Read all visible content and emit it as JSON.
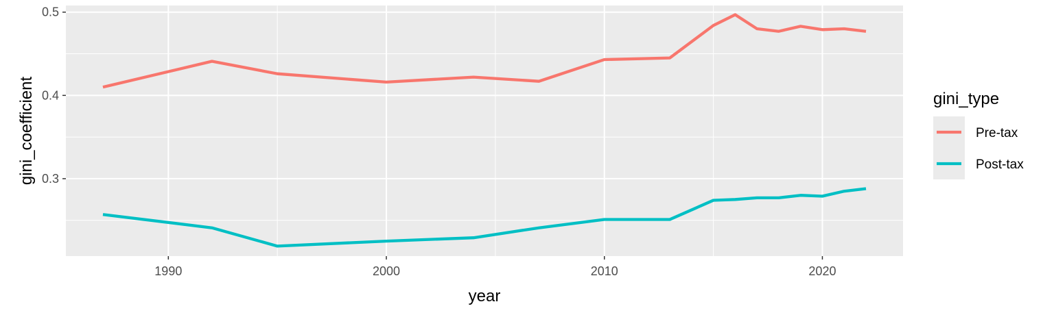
{
  "chart_data": {
    "type": "line",
    "xlabel": "year",
    "ylabel": "gini_coefficient",
    "xlim": [
      1985.3,
      2023.7
    ],
    "ylim": [
      0.207,
      0.508
    ],
    "x_ticks": [
      1990,
      2000,
      2010,
      2020
    ],
    "y_ticks": [
      0.3,
      0.4,
      0.5
    ],
    "y_tick_labels": [
      "0.3",
      "0.4",
      "0.5"
    ],
    "x_tick_labels": [
      "1990",
      "2000",
      "2010",
      "2020"
    ],
    "grid": true,
    "background": "#ebebeb",
    "legend": {
      "title": "gini_type",
      "placement": "right"
    },
    "series": [
      {
        "name": "Pre-tax",
        "color": "#f8766d",
        "x": [
          1987,
          1992,
          1995,
          2000,
          2004,
          2007,
          2010,
          2013,
          2015,
          2016,
          2017,
          2018,
          2019,
          2020,
          2021,
          2022
        ],
        "y": [
          0.41,
          0.441,
          0.426,
          0.416,
          0.422,
          0.417,
          0.443,
          0.445,
          0.484,
          0.497,
          0.48,
          0.477,
          0.483,
          0.479,
          0.48,
          0.477
        ]
      },
      {
        "name": "Post-tax",
        "color": "#00bfc4",
        "x": [
          1987,
          1992,
          1995,
          2000,
          2004,
          2007,
          2010,
          2013,
          2015,
          2016,
          2017,
          2018,
          2019,
          2020,
          2021,
          2022
        ],
        "y": [
          0.257,
          0.241,
          0.219,
          0.225,
          0.229,
          0.241,
          0.251,
          0.251,
          0.274,
          0.275,
          0.277,
          0.277,
          0.28,
          0.279,
          0.285,
          0.288
        ]
      }
    ]
  }
}
